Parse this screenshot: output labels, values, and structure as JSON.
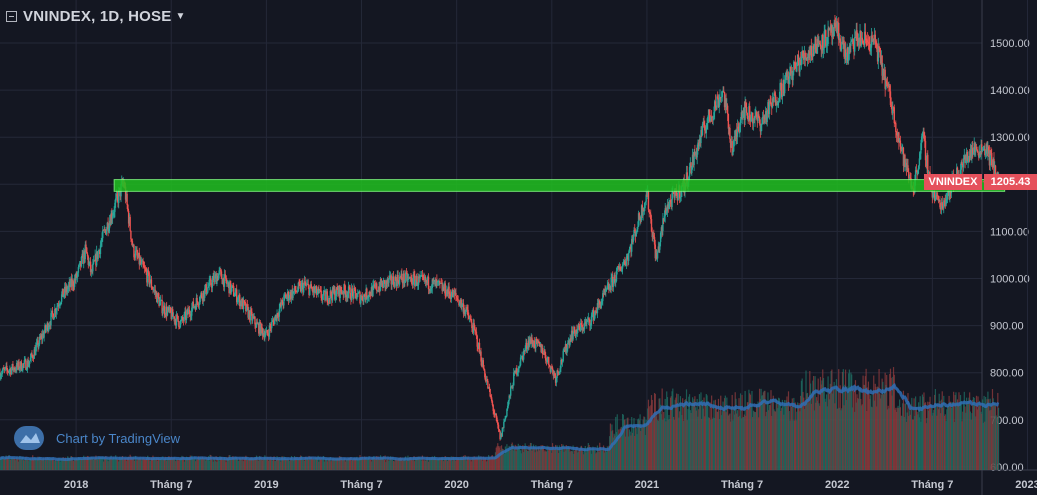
{
  "header": {
    "title": "VNINDEX, 1D, HOSE"
  },
  "watermark": {
    "text": "Chart by TradingView"
  },
  "price_label": {
    "symbol": "VNINDEX",
    "value": "1205.43"
  },
  "colors": {
    "background": "#141722",
    "up": "#26a69a",
    "down": "#ef5350",
    "zone": "#20c020",
    "volume_ma": "#2f6fb5",
    "tag": "#e5515c"
  },
  "chart_data": {
    "type": "candlestick",
    "x_labels": [
      "2018",
      "Tháng 7",
      "2019",
      "Tháng 7",
      "2020",
      "Tháng 7",
      "2021",
      "Tháng 7",
      "2022",
      "Tháng 7",
      "2023"
    ],
    "y_ticks": [
      "1500.00",
      "1400.00",
      "1300.00",
      "1200.00",
      "1100.00",
      "1000.00",
      "900.00",
      "800.00",
      "700.00",
      "600.00"
    ],
    "ylim": [
      600,
      1545
    ],
    "xlim": [
      2017.6,
      2023.05
    ],
    "price_path": [
      [
        2017.6,
        800
      ],
      [
        2017.75,
        820
      ],
      [
        2017.85,
        900
      ],
      [
        2017.92,
        960
      ],
      [
        2018.0,
        1000
      ],
      [
        2018.05,
        1060
      ],
      [
        2018.08,
        1010
      ],
      [
        2018.15,
        1100
      ],
      [
        2018.2,
        1150
      ],
      [
        2018.25,
        1205
      ],
      [
        2018.3,
        1060
      ],
      [
        2018.38,
        1000
      ],
      [
        2018.45,
        940
      ],
      [
        2018.55,
        905
      ],
      [
        2018.65,
        960
      ],
      [
        2018.75,
        1010
      ],
      [
        2018.85,
        960
      ],
      [
        2018.95,
        900
      ],
      [
        2019.0,
        880
      ],
      [
        2019.1,
        960
      ],
      [
        2019.2,
        985
      ],
      [
        2019.3,
        960
      ],
      [
        2019.4,
        975
      ],
      [
        2019.5,
        960
      ],
      [
        2019.6,
        985
      ],
      [
        2019.7,
        1000
      ],
      [
        2019.8,
        995
      ],
      [
        2019.9,
        985
      ],
      [
        2020.0,
        960
      ],
      [
        2020.05,
        930
      ],
      [
        2020.1,
        880
      ],
      [
        2020.17,
        760
      ],
      [
        2020.23,
        660
      ],
      [
        2020.3,
        790
      ],
      [
        2020.38,
        870
      ],
      [
        2020.45,
        850
      ],
      [
        2020.52,
        790
      ],
      [
        2020.6,
        880
      ],
      [
        2020.7,
        910
      ],
      [
        2020.8,
        980
      ],
      [
        2020.9,
        1050
      ],
      [
        2021.0,
        1180
      ],
      [
        2021.05,
        1040
      ],
      [
        2021.1,
        1150
      ],
      [
        2021.2,
        1200
      ],
      [
        2021.3,
        1320
      ],
      [
        2021.4,
        1400
      ],
      [
        2021.45,
        1270
      ],
      [
        2021.5,
        1360
      ],
      [
        2021.6,
        1330
      ],
      [
        2021.7,
        1400
      ],
      [
        2021.8,
        1460
      ],
      [
        2021.9,
        1500
      ],
      [
        2022.0,
        1525
      ],
      [
        2022.05,
        1470
      ],
      [
        2022.1,
        1510
      ],
      [
        2022.2,
        1500
      ],
      [
        2022.28,
        1380
      ],
      [
        2022.35,
        1250
      ],
      [
        2022.4,
        1190
      ],
      [
        2022.45,
        1300
      ],
      [
        2022.5,
        1180
      ],
      [
        2022.55,
        1155
      ],
      [
        2022.6,
        1200
      ],
      [
        2022.7,
        1270
      ],
      [
        2022.78,
        1280
      ],
      [
        2022.85,
        1205.43
      ]
    ],
    "zone": {
      "low": 1185,
      "high": 1210,
      "from": 2018.2,
      "to": 2022.88
    },
    "last_price": 1205.43
  }
}
